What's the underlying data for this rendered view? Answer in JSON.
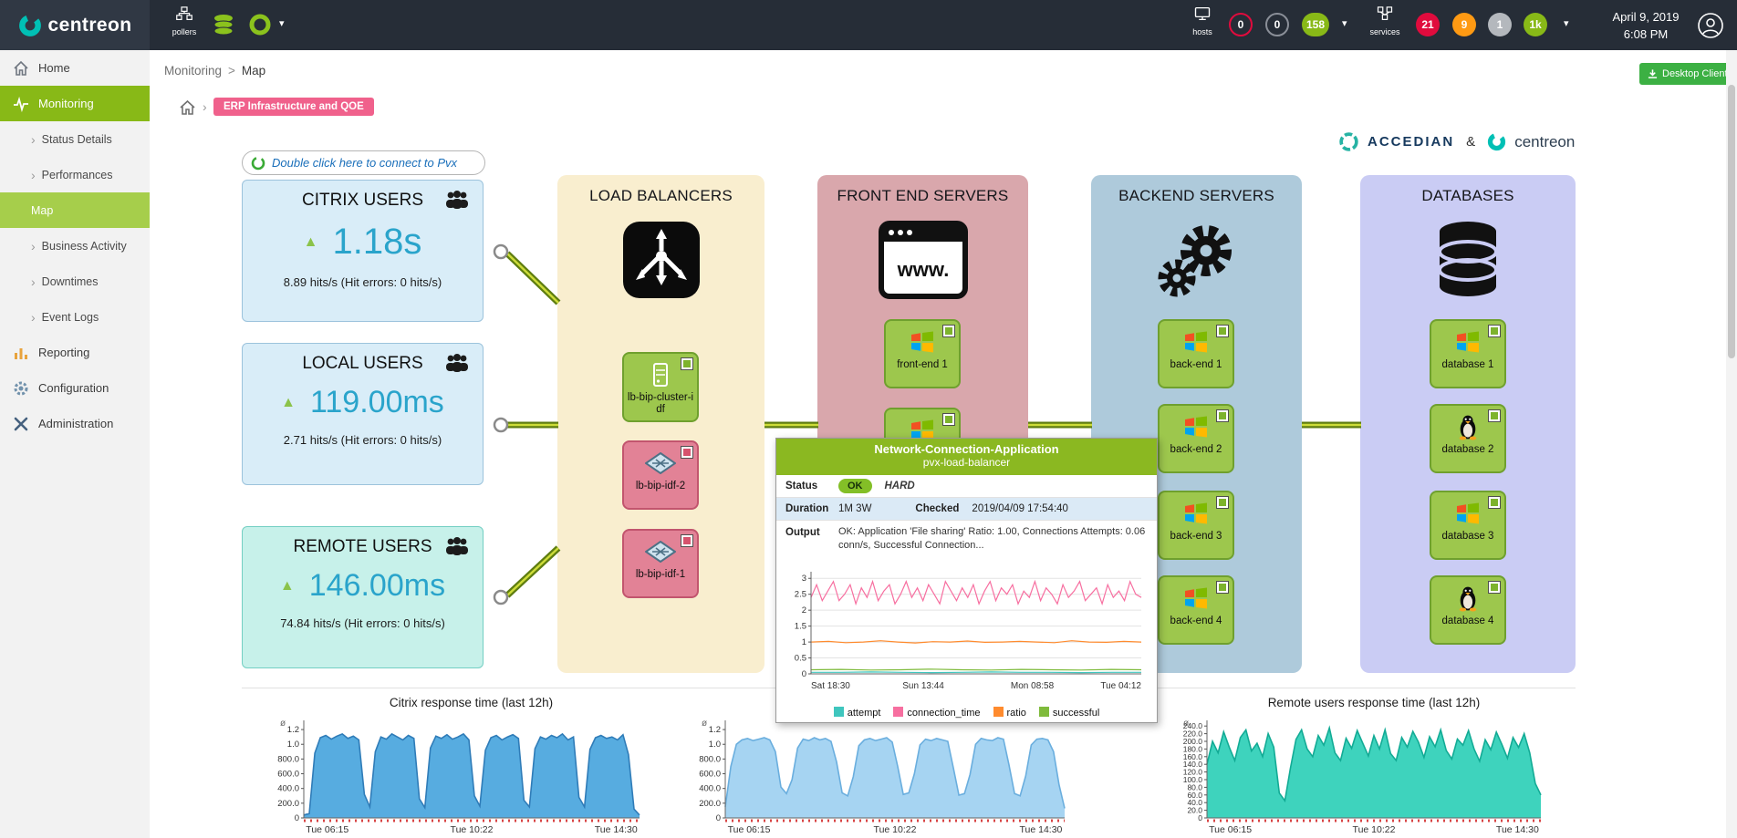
{
  "colors": {
    "centreon_green": "#88b917",
    "ok_green": "#9dc74d",
    "critical_pink": "#e28296",
    "tooltip_header_green": "#8bb821",
    "value_teal": "#2aa4cb",
    "badge_pink": "#f0618c"
  },
  "header": {
    "logo_text": "centreon",
    "chevron": "▾",
    "pollers": {
      "label": "pollers"
    },
    "hosts": {
      "label": "hosts",
      "badges": [
        {
          "value": "0",
          "style": "ring-red"
        },
        {
          "value": "0",
          "style": "ring-gray"
        },
        {
          "value": "158",
          "style": "fill-green"
        }
      ]
    },
    "services": {
      "label": "services",
      "badges": [
        {
          "value": "21",
          "style": "fill-red"
        },
        {
          "value": "9",
          "style": "fill-orange"
        },
        {
          "value": "1",
          "style": "fill-gray"
        },
        {
          "value": "1k",
          "style": "fill-green"
        }
      ]
    },
    "date": "April 9, 2019",
    "time": "6:08 PM"
  },
  "sidebar": {
    "arrow": "›",
    "items": [
      {
        "label": "Home"
      },
      {
        "label": "Monitoring"
      },
      {
        "label": "Status Details"
      },
      {
        "label": "Performances"
      },
      {
        "label": "Map"
      },
      {
        "label": "Business Activity"
      },
      {
        "label": "Downtimes"
      },
      {
        "label": "Event Logs"
      },
      {
        "label": "Reporting"
      },
      {
        "label": "Configuration"
      },
      {
        "label": "Administration"
      }
    ]
  },
  "breadcrumb": {
    "section": "Monitoring",
    "separator": ">",
    "page": "Map",
    "desktop_client_label": "Desktop Client"
  },
  "mapbar": {
    "separator": "›",
    "badge_label": "ERP Infrastructure and QOE"
  },
  "brand": {
    "accedian": "ACCEDIAN",
    "ampersand": "&",
    "centreon": "centreon"
  },
  "map": {
    "pvx_button_label": "Double click here to connect to Pvx",
    "user_boxes": [
      {
        "title": "CITRIX USERS",
        "trend": "up",
        "value": "1.18s",
        "stats": "8.89 hits/s (Hit errors: 0 hits/s)"
      },
      {
        "title": "LOCAL USERS",
        "trend": "up",
        "value": "119.00ms",
        "stats": "2.71 hits/s (Hit errors: 0 hits/s)"
      },
      {
        "title": "REMOTE USERS",
        "trend": "up",
        "value": "146.00ms",
        "stats": "74.84 hits/s (Hit errors: 0 hits/s)"
      }
    ],
    "columns": [
      {
        "title": "LOAD BALANCERS",
        "nodes": [
          {
            "label": "lb-bip-cluster-idf",
            "status": "ok"
          },
          {
            "label": "lb-bip-idf-2",
            "status": "critical"
          },
          {
            "label": "lb-bip-idf-1",
            "status": "critical"
          }
        ]
      },
      {
        "title": "FRONT END SERVERS",
        "nodes": [
          {
            "label": "front-end 1",
            "status": "ok"
          },
          {
            "label": "",
            "status": "ok"
          }
        ]
      },
      {
        "title": "BACKEND SERVERS",
        "nodes": [
          {
            "label": "back-end 1",
            "status": "ok"
          },
          {
            "label": "back-end 2",
            "status": "ok"
          },
          {
            "label": "back-end 3",
            "status": "ok"
          },
          {
            "label": "back-end 4",
            "status": "ok"
          }
        ]
      },
      {
        "title": "DATABASES",
        "nodes": [
          {
            "label": "database 1",
            "status": "ok"
          },
          {
            "label": "database 2",
            "status": "ok"
          },
          {
            "label": "database 3",
            "status": "ok"
          },
          {
            "label": "database 4",
            "status": "ok"
          }
        ]
      }
    ]
  },
  "tooltip": {
    "title": "Network-Connection-Application",
    "subtitle": "pvx-load-balancer",
    "status_label": "Status",
    "status_value": "OK",
    "status_type": "HARD",
    "duration_label": "Duration",
    "duration_value": "1M 3W",
    "checked_label": "Checked",
    "checked_value": "2019/04/09 17:54:40",
    "output_label": "Output",
    "output_value": "OK: Application 'File sharing' Ratio: 1.00, Connections Attempts: 0.06 conn/s, Successful Connection...",
    "legend": [
      {
        "label": "attempt",
        "color": "#3fc6be"
      },
      {
        "label": "connection_time",
        "color": "#f76fa0"
      },
      {
        "label": "ratio",
        "color": "#ff8b2e"
      },
      {
        "label": "successful",
        "color": "#7fbb3c"
      }
    ]
  },
  "chart_data": [
    {
      "id": "tooltip-chart",
      "type": "line",
      "title": "",
      "ylim": [
        0,
        3.15
      ],
      "yticks": [
        0,
        0.5,
        1,
        1.5,
        2,
        2.5,
        3
      ],
      "ytick_labels": [
        "0",
        "0.5",
        "1",
        "1.5",
        "2",
        "2.5",
        "3"
      ],
      "xtick_labels": [
        "Sat 18:30",
        "Sun 13:44",
        "Mon 08:58",
        "Tue 04:12"
      ],
      "series": [
        {
          "name": "attempt",
          "color": "#3fc6be",
          "values": [
            0.05,
            0.05,
            0.06,
            0.05,
            0.04,
            0.05,
            0.06,
            0.05,
            0.05,
            0.04,
            0.05,
            0.05
          ]
        },
        {
          "name": "connection_time",
          "color": "#f76fa0",
          "values": [
            2.4,
            2.8,
            2.3,
            2.6,
            2.9,
            2.3,
            2.5,
            2.8,
            2.2,
            2.7,
            2.4,
            2.9,
            2.3,
            2.6,
            2.8,
            2.2,
            2.5,
            2.9,
            2.4,
            2.7,
            2.3,
            2.8,
            2.5,
            2.2,
            2.9,
            2.6,
            2.3,
            2.7,
            2.4,
            2.8,
            2.2,
            2.6,
            2.9,
            2.3,
            2.7,
            2.5,
            2.8,
            2.2,
            2.6,
            2.4,
            2.9,
            2.3,
            2.7,
            2.5,
            2.2,
            2.8,
            2.4,
            2.6,
            2.9,
            2.3,
            2.5,
            2.7,
            2.2,
            2.8,
            2.4,
            2.6,
            2.3,
            2.9,
            2.5,
            2.4
          ]
        },
        {
          "name": "ratio",
          "color": "#ff8b2e",
          "values": [
            1.0,
            1.02,
            0.98,
            1.0,
            1.04,
            1.0,
            0.97,
            1.01,
            1.0,
            1.03,
            0.99,
            1.0,
            1.02,
            1.0,
            0.98,
            1.04,
            1.0,
            0.99,
            1.02,
            1.0
          ]
        },
        {
          "name": "successful",
          "color": "#7fbb3c",
          "values": [
            0.13,
            0.14,
            0.12,
            0.13,
            0.15,
            0.13,
            0.12,
            0.14,
            0.13,
            0.12,
            0.14,
            0.13
          ]
        }
      ]
    },
    {
      "id": "chart-citrix",
      "type": "area",
      "title": "Citrix response time (last 12h)",
      "y_axis_symbol": "ø",
      "ylim": [
        0,
        1300
      ],
      "yticks": [
        0,
        200,
        400,
        600,
        800,
        1000,
        1200
      ],
      "ytick_labels": [
        "0",
        "200.0",
        "400.0",
        "600.0",
        "800.0",
        "1.0",
        "1.2"
      ],
      "xtick_labels": [
        "Tue 06:15",
        "Tue 10:22",
        "Tue 14:30"
      ],
      "series": [
        {
          "name": "response_time",
          "color": "#2f7cb8",
          "fill": "#57ace0",
          "values": [
            40,
            60,
            880,
            1090,
            1120,
            1070,
            1110,
            1140,
            1080,
            1110,
            1060,
            320,
            150,
            900,
            1100,
            1070,
            1140,
            1100,
            1060,
            1120,
            1080,
            260,
            140,
            950,
            1110,
            1080,
            1130,
            1070,
            1100,
            1140,
            1060,
            300,
            160,
            920,
            1090,
            1120,
            1060,
            1100,
            1130,
            1080,
            240,
            150,
            940,
            1100,
            1070,
            1120,
            1090,
            1140,
            1060,
            1100,
            280,
            150,
            930,
            1090,
            1120,
            1080,
            1100,
            1060,
            1130,
            860,
            120,
            40
          ]
        }
      ]
    },
    {
      "id": "chart-middle",
      "type": "area",
      "title": "",
      "y_axis_symbol": "ø",
      "ylim": [
        0,
        1300
      ],
      "yticks": [
        0,
        200,
        400,
        600,
        800,
        1000,
        1200
      ],
      "ytick_labels": [
        "0",
        "200.0",
        "400.0",
        "600.0",
        "800.0",
        "1.0",
        "1.2"
      ],
      "xtick_labels": [
        "Tue 06:15",
        "Tue 10:22",
        "Tue 14:30"
      ],
      "series": [
        {
          "name": "response_time",
          "color": "#6aaede",
          "fill": "#a6d4f2",
          "values": [
            150,
            700,
            1000,
            1060,
            1080,
            1050,
            1070,
            1090,
            1060,
            900,
            420,
            330,
            520,
            950,
            1070,
            1050,
            1090,
            1060,
            1080,
            1040,
            760,
            340,
            300,
            560,
            980,
            1060,
            1080,
            1050,
            1070,
            1090,
            1030,
            700,
            320,
            340,
            600,
            990,
            1070,
            1050,
            1080,
            1060,
            1040,
            680,
            310,
            330,
            590,
            1000,
            1080,
            1060,
            1050,
            1090,
            1070,
            720,
            330,
            300,
            570,
            990,
            1070,
            1080,
            1060,
            900,
            450,
            130
          ]
        }
      ]
    },
    {
      "id": "chart-remote",
      "type": "area",
      "title": "Remote users response time (last 12h)",
      "y_axis_symbol": "ø",
      "ylim": [
        0,
        250
      ],
      "yticks": [
        0,
        20,
        40,
        60,
        80,
        100,
        120,
        140,
        160,
        180,
        200,
        220,
        240
      ],
      "ytick_labels": [
        "0",
        "20.0",
        "40.0",
        "60.0",
        "80.0",
        "100.0",
        "120.0",
        "140.0",
        "160.0",
        "180.0",
        "200.0",
        "220.0",
        "240.0"
      ],
      "xtick_labels": [
        "Tue 06:15",
        "Tue 10:22",
        "Tue 14:30"
      ],
      "series": [
        {
          "name": "response_time",
          "color": "#12ab95",
          "fill": "#3ed3bd",
          "values": [
            140,
            200,
            170,
            225,
            185,
            150,
            210,
            230,
            175,
            195,
            160,
            220,
            185,
            65,
            45,
            130,
            205,
            230,
            180,
            160,
            215,
            190,
            235,
            170,
            150,
            208,
            182,
            228,
            195,
            162,
            215,
            180,
            230,
            168,
            150,
            210,
            185,
            226,
            198,
            158,
            212,
            186,
            230,
            176,
            154,
            206,
            190,
            228,
            180,
            148,
            204,
            178,
            224,
            192,
            156,
            210,
            184,
            220,
            170,
            90,
            60
          ]
        }
      ]
    }
  ]
}
